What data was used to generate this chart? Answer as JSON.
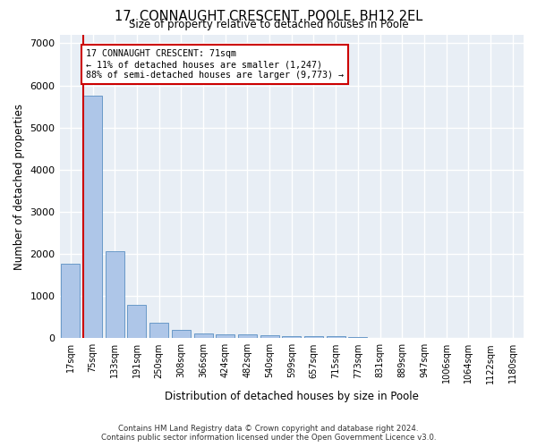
{
  "title": "17, CONNAUGHT CRESCENT, POOLE, BH12 2EL",
  "subtitle": "Size of property relative to detached houses in Poole",
  "xlabel": "Distribution of detached houses by size in Poole",
  "ylabel": "Number of detached properties",
  "categories": [
    "17sqm",
    "75sqm",
    "133sqm",
    "191sqm",
    "250sqm",
    "308sqm",
    "366sqm",
    "424sqm",
    "482sqm",
    "540sqm",
    "599sqm",
    "657sqm",
    "715sqm",
    "773sqm",
    "831sqm",
    "889sqm",
    "947sqm",
    "1006sqm",
    "1064sqm",
    "1122sqm",
    "1180sqm"
  ],
  "values": [
    1760,
    5760,
    2060,
    800,
    360,
    200,
    115,
    100,
    95,
    70,
    55,
    50,
    55,
    20,
    15,
    10,
    8,
    6,
    5,
    4,
    3
  ],
  "bar_color": "#aec6e8",
  "bar_edge_color": "#5a8fc2",
  "vline_color": "#cc0000",
  "vline_x_index": 1,
  "annotation_text_line1": "17 CONNAUGHT CRESCENT: 71sqm",
  "annotation_text_line2": "← 11% of detached houses are smaller (1,247)",
  "annotation_text_line3": "88% of semi-detached houses are larger (9,773) →",
  "annotation_box_color": "#cc0000",
  "ylim": [
    0,
    7200
  ],
  "yticks": [
    0,
    1000,
    2000,
    3000,
    4000,
    5000,
    6000,
    7000
  ],
  "bg_color": "#e8eef5",
  "grid_color": "#ffffff",
  "footer_line1": "Contains HM Land Registry data © Crown copyright and database right 2024.",
  "footer_line2": "Contains public sector information licensed under the Open Government Licence v3.0."
}
